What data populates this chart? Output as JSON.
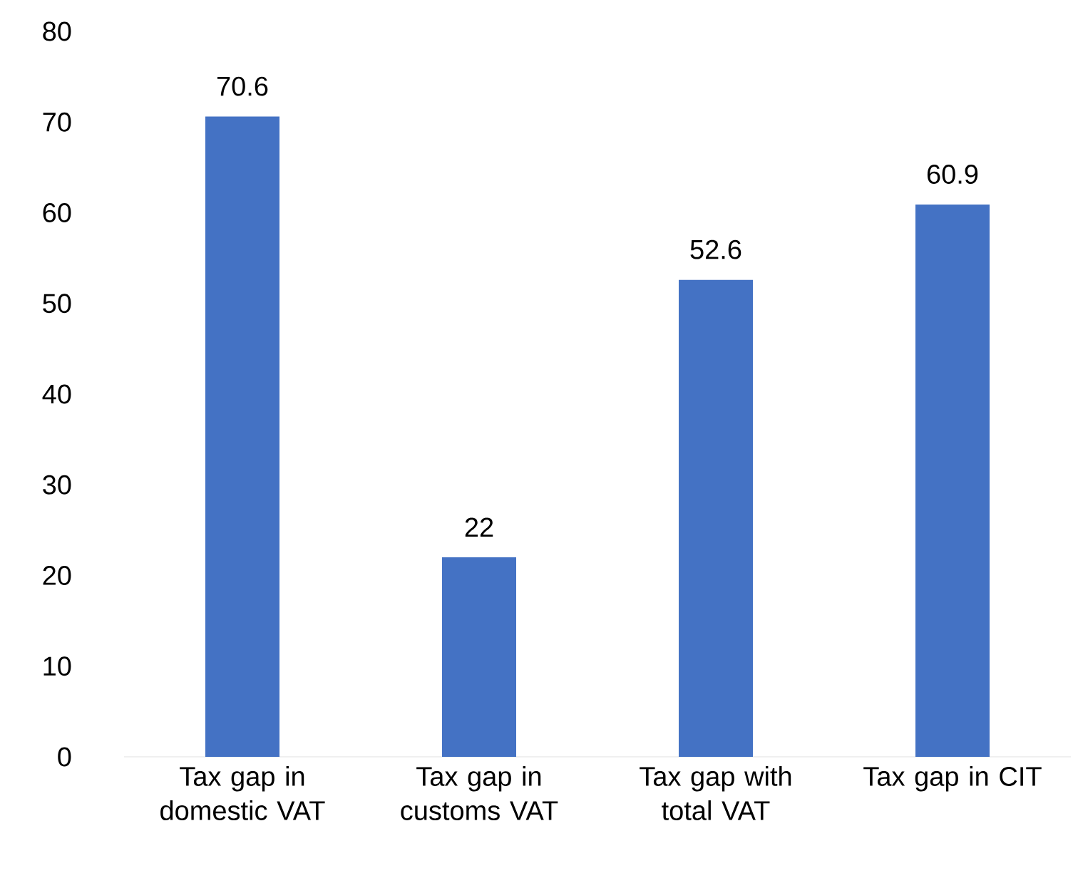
{
  "chart_data": {
    "type": "bar",
    "categories": [
      "Tax gap in domestic VAT",
      "Tax gap in customs VAT",
      "Tax gap with total VAT",
      "Tax gap in CIT"
    ],
    "values": [
      70.6,
      22,
      52.6,
      60.9
    ],
    "color": "#4472c4",
    "ylim": [
      0,
      80
    ],
    "yticks": [
      0,
      10,
      20,
      30,
      40,
      50,
      60,
      70,
      80
    ],
    "data_labels": true
  }
}
